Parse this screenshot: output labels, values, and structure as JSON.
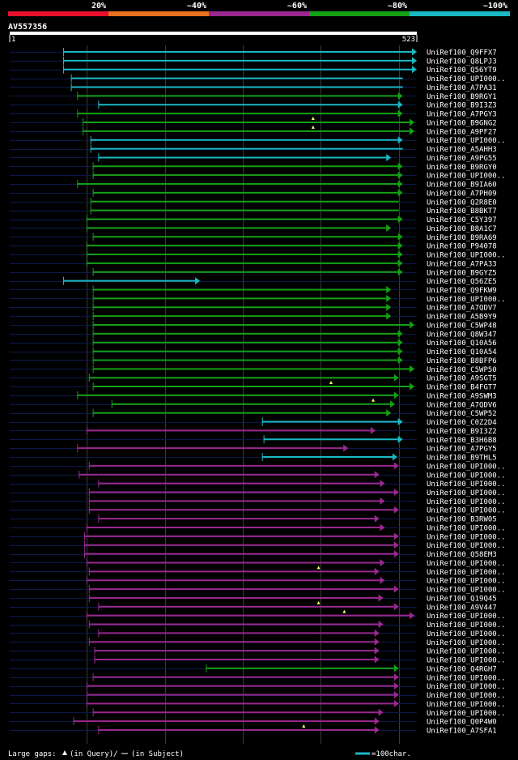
{
  "chart_data": {
    "type": "alignment_overview",
    "query_id": "AV557356",
    "query_length": 523,
    "scale_start_label": "1",
    "scale_end_label": "523",
    "identity_legend": [
      {
        "label": "20%",
        "color": "#e8102c"
      },
      {
        "label": "~40%",
        "color": "#e8721e"
      },
      {
        "label": "~60%",
        "color": "#9a2890"
      },
      {
        "label": "~80%",
        "color": "#14a014"
      },
      {
        "label": "~100%",
        "color": "#19b8c4"
      }
    ],
    "gridlines_every": 100,
    "hits": [
      {
        "id": "UniRef100_Q9FFX7",
        "start": 70,
        "end": 523,
        "cls": 4,
        "arrow": true
      },
      {
        "id": "UniRef100_Q8LPJ3",
        "start": 70,
        "end": 523,
        "cls": 4,
        "arrow": true
      },
      {
        "id": "UniRef100_Q56YT9",
        "start": 70,
        "end": 523,
        "cls": 4,
        "arrow": true
      },
      {
        "id": "UniRef100_UPI000..",
        "start": 80,
        "end": 505,
        "cls": 4,
        "arrow": false
      },
      {
        "id": "UniRef100_A7PA31",
        "start": 80,
        "end": 505,
        "cls": 4,
        "arrow": false
      },
      {
        "id": "UniRef100_B9RGY1",
        "start": 88,
        "end": 505,
        "cls": 3,
        "arrow": true
      },
      {
        "id": "UniRef100_B9I3Z3",
        "start": 115,
        "end": 505,
        "cls": 4,
        "arrow": true
      },
      {
        "id": "UniRef100_A7PGY3",
        "start": 88,
        "end": 505,
        "cls": 3,
        "arrow": true
      },
      {
        "id": "UniRef100_B9GNG2",
        "start": 95,
        "end": 520,
        "cls": 3,
        "arrow": true,
        "gap": 390
      },
      {
        "id": "UniRef100_A9PF27",
        "start": 95,
        "end": 520,
        "cls": 3,
        "arrow": true,
        "gap": 390
      },
      {
        "id": "UniRef100_UPI000..",
        "start": 105,
        "end": 505,
        "cls": 4,
        "arrow": true
      },
      {
        "id": "UniRef100_A5AHH3",
        "start": 105,
        "end": 505,
        "cls": 4,
        "arrow": false
      },
      {
        "id": "UniRef100_A9PG55",
        "start": 115,
        "end": 490,
        "cls": 4,
        "arrow": true
      },
      {
        "id": "UniRef100_B9RGY0",
        "start": 108,
        "end": 505,
        "cls": 3,
        "arrow": true
      },
      {
        "id": "UniRef100_UPI000..",
        "start": 108,
        "end": 505,
        "cls": 3,
        "arrow": true
      },
      {
        "id": "UniRef100_B9IA60",
        "start": 88,
        "end": 505,
        "cls": 3,
        "arrow": true
      },
      {
        "id": "UniRef100_A7PH09",
        "start": 108,
        "end": 505,
        "cls": 3,
        "arrow": true
      },
      {
        "id": "UniRef100_Q2R8E0",
        "start": 105,
        "end": 500,
        "cls": 3,
        "arrow": false
      },
      {
        "id": "UniRef100_B8BKT7",
        "start": 105,
        "end": 500,
        "cls": 3,
        "arrow": false
      },
      {
        "id": "UniRef100_C5Y397",
        "start": 100,
        "end": 505,
        "cls": 3,
        "arrow": true
      },
      {
        "id": "UniRef100_B8A1C7",
        "start": 100,
        "end": 490,
        "cls": 3,
        "arrow": true
      },
      {
        "id": "UniRef100_B9RA69",
        "start": 108,
        "end": 505,
        "cls": 3,
        "arrow": true
      },
      {
        "id": "UniRef100_P94078",
        "start": 100,
        "end": 505,
        "cls": 3,
        "arrow": true
      },
      {
        "id": "UniRef100_UPI000..",
        "start": 100,
        "end": 505,
        "cls": 3,
        "arrow": true
      },
      {
        "id": "UniRef100_A7PA33",
        "start": 100,
        "end": 505,
        "cls": 3,
        "arrow": true
      },
      {
        "id": "UniRef100_B9GYZ5",
        "start": 108,
        "end": 505,
        "cls": 3,
        "arrow": true
      },
      {
        "id": "UniRef100_Q56ZE5",
        "start": 70,
        "end": 245,
        "cls": 4,
        "arrow": true
      },
      {
        "id": "UniRef100_Q9FKW9",
        "start": 108,
        "end": 490,
        "cls": 3,
        "arrow": true
      },
      {
        "id": "UniRef100_UPI000..",
        "start": 108,
        "end": 490,
        "cls": 3,
        "arrow": true
      },
      {
        "id": "UniRef100_A7QDV7",
        "start": 108,
        "end": 490,
        "cls": 3,
        "arrow": true
      },
      {
        "id": "UniRef100_A5B9Y9",
        "start": 108,
        "end": 490,
        "cls": 3,
        "arrow": true
      },
      {
        "id": "UniRef100_C5WP48",
        "start": 108,
        "end": 520,
        "cls": 3,
        "arrow": true
      },
      {
        "id": "UniRef100_Q8W347",
        "start": 108,
        "end": 505,
        "cls": 3,
        "arrow": true
      },
      {
        "id": "UniRef100_Q10A56",
        "start": 108,
        "end": 505,
        "cls": 3,
        "arrow": true
      },
      {
        "id": "UniRef100_Q10A54",
        "start": 108,
        "end": 505,
        "cls": 3,
        "arrow": true
      },
      {
        "id": "UniRef100_B8BFP6",
        "start": 108,
        "end": 505,
        "cls": 3,
        "arrow": true
      },
      {
        "id": "UniRef100_C5WP50",
        "start": 108,
        "end": 520,
        "cls": 3,
        "arrow": true
      },
      {
        "id": "UniRef100_A9SGT5",
        "start": 103,
        "end": 500,
        "cls": 3,
        "arrow": true
      },
      {
        "id": "UniRef100_B4FGT7",
        "start": 108,
        "end": 520,
        "cls": 3,
        "arrow": true,
        "gap": 413
      },
      {
        "id": "UniRef100_A9SWM3",
        "start": 88,
        "end": 500,
        "cls": 3,
        "arrow": true
      },
      {
        "id": "UniRef100_A7QDV6",
        "start": 132,
        "end": 495,
        "cls": 3,
        "arrow": true,
        "gap": 467
      },
      {
        "id": "UniRef100_C5WP52",
        "start": 108,
        "end": 490,
        "cls": 3,
        "arrow": true
      },
      {
        "id": "UniRef100_C0Z2D4",
        "start": 325,
        "end": 505,
        "cls": 4,
        "arrow": true
      },
      {
        "id": "UniRef100_B9I3Z2",
        "start": 100,
        "end": 470,
        "cls": 2,
        "arrow": true
      },
      {
        "id": "UniRef100_B3H6B8",
        "start": 327,
        "end": 505,
        "cls": 4,
        "arrow": true
      },
      {
        "id": "UniRef100_A7PGY5",
        "start": 88,
        "end": 435,
        "cls": 2,
        "arrow": true
      },
      {
        "id": "UniRef100_B9THL5",
        "start": 325,
        "end": 498,
        "cls": 4,
        "arrow": true
      },
      {
        "id": "UniRef100_UPI000..",
        "start": 103,
        "end": 500,
        "cls": 2,
        "arrow": true
      },
      {
        "id": "UniRef100_UPI000..",
        "start": 90,
        "end": 475,
        "cls": 2,
        "arrow": true
      },
      {
        "id": "UniRef100_UPI000..",
        "start": 115,
        "end": 482,
        "cls": 2,
        "arrow": true
      },
      {
        "id": "UniRef100_UPI000..",
        "start": 103,
        "end": 500,
        "cls": 2,
        "arrow": true
      },
      {
        "id": "UniRef100_UPI000..",
        "start": 103,
        "end": 482,
        "cls": 2,
        "arrow": true
      },
      {
        "id": "UniRef100_UPI000..",
        "start": 103,
        "end": 500,
        "cls": 2,
        "arrow": true
      },
      {
        "id": "UniRef100_B3RW05",
        "start": 115,
        "end": 475,
        "cls": 2,
        "arrow": true
      },
      {
        "id": "UniRef100_UPI000..",
        "start": 100,
        "end": 482,
        "cls": 2,
        "arrow": true
      },
      {
        "id": "UniRef100_UPI000..",
        "start": 97,
        "end": 500,
        "cls": 2,
        "arrow": true
      },
      {
        "id": "UniRef100_UPI000..",
        "start": 97,
        "end": 500,
        "cls": 2,
        "arrow": true
      },
      {
        "id": "UniRef100_Q58EM3",
        "start": 97,
        "end": 500,
        "cls": 2,
        "arrow": true
      },
      {
        "id": "UniRef100_UPI000..",
        "start": 100,
        "end": 482,
        "cls": 2,
        "arrow": true
      },
      {
        "id": "UniRef100_UPI000..",
        "start": 103,
        "end": 475,
        "cls": 2,
        "arrow": true,
        "gap": 397
      },
      {
        "id": "UniRef100_UPI000..",
        "start": 100,
        "end": 482,
        "cls": 2,
        "arrow": true
      },
      {
        "id": "UniRef100_UPI000..",
        "start": 103,
        "end": 500,
        "cls": 2,
        "arrow": true
      },
      {
        "id": "UniRef100_Q19Q45",
        "start": 103,
        "end": 480,
        "cls": 2,
        "arrow": true
      },
      {
        "id": "UniRef100_A9V447",
        "start": 115,
        "end": 500,
        "cls": 2,
        "arrow": true,
        "gap": 397
      },
      {
        "id": "UniRef100_UPI000..",
        "start": 100,
        "end": 520,
        "cls": 2,
        "arrow": true,
        "gap": 430
      },
      {
        "id": "UniRef100_UPI000..",
        "start": 103,
        "end": 480,
        "cls": 2,
        "arrow": true
      },
      {
        "id": "UniRef100_UPI000..",
        "start": 115,
        "end": 475,
        "cls": 2,
        "arrow": true
      },
      {
        "id": "UniRef100_UPI000..",
        "start": 103,
        "end": 475,
        "cls": 2,
        "arrow": true
      },
      {
        "id": "UniRef100_UPI000..",
        "start": 110,
        "end": 475,
        "cls": 2,
        "arrow": true
      },
      {
        "id": "UniRef100_UPI000..",
        "start": 110,
        "end": 475,
        "cls": 2,
        "arrow": true
      },
      {
        "id": "UniRef100_Q4RGH7",
        "start": 253,
        "end": 500,
        "cls": 3,
        "arrow": true
      },
      {
        "id": "UniRef100_UPI000..",
        "start": 108,
        "end": 500,
        "cls": 2,
        "arrow": true
      },
      {
        "id": "UniRef100_UPI000..",
        "start": 100,
        "end": 500,
        "cls": 2,
        "arrow": true
      },
      {
        "id": "UniRef100_UPI000..",
        "start": 100,
        "end": 500,
        "cls": 2,
        "arrow": true
      },
      {
        "id": "UniRef100_UPI000..",
        "start": 100,
        "end": 500,
        "cls": 2,
        "arrow": true
      },
      {
        "id": "UniRef100_UPI000..",
        "start": 108,
        "end": 480,
        "cls": 2,
        "arrow": true
      },
      {
        "id": "UniRef100_Q0P4W0",
        "start": 83,
        "end": 475,
        "cls": 2,
        "arrow": true
      },
      {
        "id": "UniRef100_A7SFA1",
        "start": 115,
        "end": 475,
        "cls": 2,
        "arrow": true,
        "gap": 378
      }
    ]
  },
  "footer": {
    "large_gaps_label": "Large gaps:",
    "gap_query_label": "(in Query)/",
    "gap_subject_label": "(in Subject)",
    "scale_label": "=100char."
  }
}
